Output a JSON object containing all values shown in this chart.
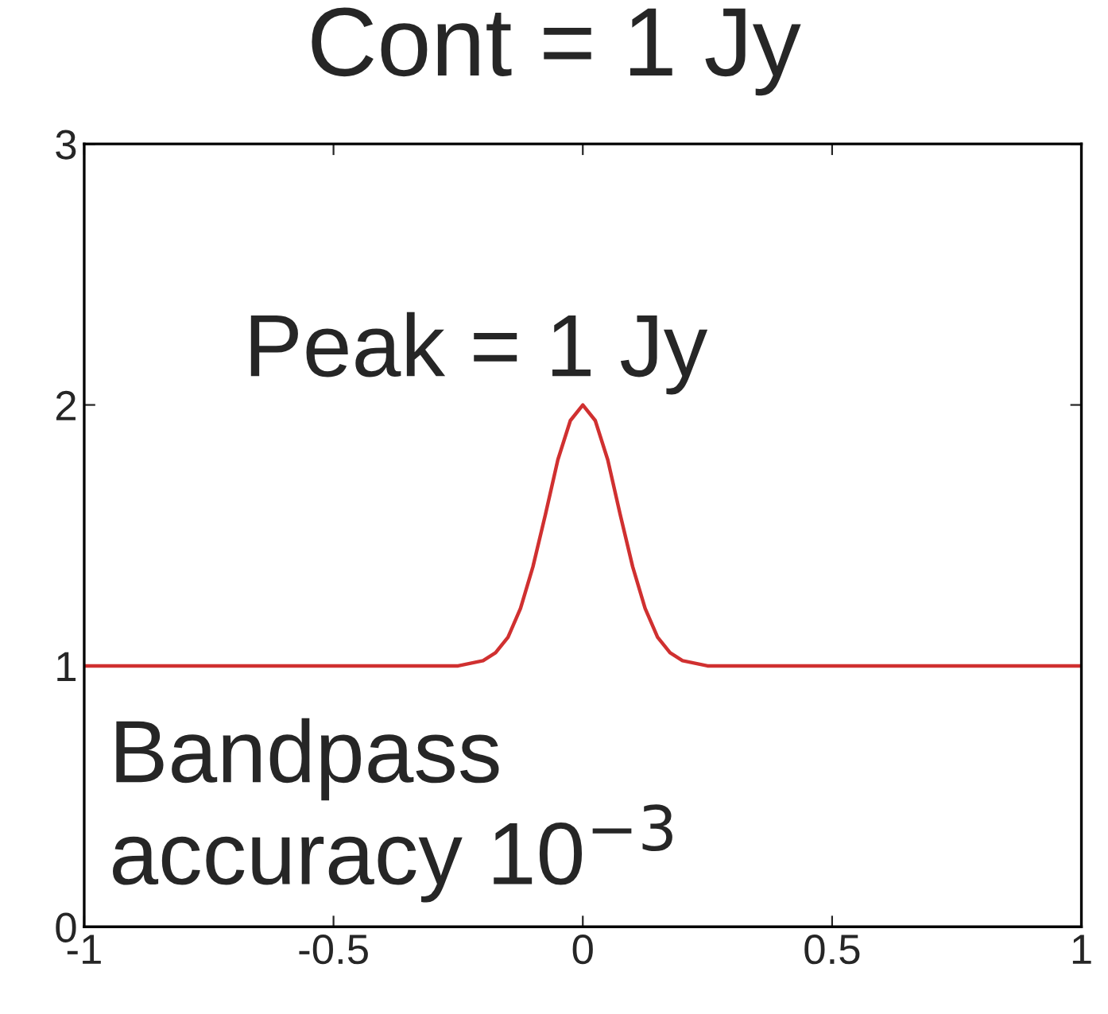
{
  "chart_data": {
    "type": "line",
    "title": "Cont = 1 Jy",
    "annotations": [
      "Peak = 1 Jy",
      "Bandpass\naccuracy 10$^{−3}$"
    ],
    "x": [
      -1,
      -0.5,
      -0.25,
      -0.2,
      -0.175,
      -0.15,
      -0.125,
      -0.1,
      -0.075,
      -0.05,
      -0.025,
      0,
      0.025,
      0.05,
      0.075,
      0.1,
      0.125,
      0.15,
      0.175,
      0.2,
      0.25,
      0.5,
      1
    ],
    "series": [
      {
        "color": "#d03030",
        "values": [
          1,
          1,
          1,
          1.02,
          1.05,
          1.11,
          1.22,
          1.38,
          1.58,
          1.79,
          1.94,
          2,
          1.94,
          1.79,
          1.58,
          1.38,
          1.22,
          1.11,
          1.05,
          1.02,
          1,
          1,
          1
        ]
      }
    ],
    "xlim": [
      -1,
      1
    ],
    "ylim": [
      0,
      3
    ],
    "xticks": [
      -1,
      -0.5,
      0,
      0.5,
      1
    ],
    "yticks": [
      0,
      1,
      2,
      3
    ],
    "grid": false,
    "legend": false
  }
}
